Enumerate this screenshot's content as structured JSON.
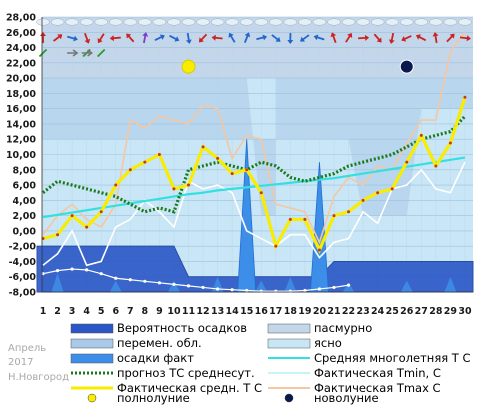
{
  "chart_data": {
    "type": "line",
    "side_labels": [
      "Апрель",
      "2017",
      "Н.Новгород"
    ],
    "x": [
      1,
      2,
      3,
      4,
      5,
      6,
      7,
      8,
      9,
      10,
      11,
      12,
      13,
      14,
      15,
      16,
      17,
      18,
      19,
      20,
      21,
      22,
      23,
      24,
      25,
      26,
      27,
      28,
      29,
      30
    ],
    "x_ticks": [
      "1",
      "2",
      "3",
      "4",
      "5",
      "6",
      "7",
      "8",
      "9",
      "10",
      "11",
      "12",
      "13",
      "14",
      "15",
      "16",
      "17",
      "18",
      "19",
      "20",
      "21",
      "22",
      "23",
      "24",
      "25",
      "26",
      "27",
      "28",
      "29",
      "30"
    ],
    "y_ticks": [
      "28,00",
      "26,00",
      "24,00",
      "22,00",
      "20,00",
      "18,00",
      "16,00",
      "14,00",
      "12,00",
      "10,00",
      "8,00",
      "6,00",
      "4,00",
      "2,00",
      "0,00",
      "-2,00",
      "-4,00",
      "-6,00",
      "-8,00"
    ],
    "ylim": [
      -8,
      28
    ],
    "grid": true,
    "legend_position": "bottom",
    "colors": {
      "precip_prob": "#2a56c6",
      "precip_prob_edge": "#1a3fa0",
      "precip_fact": "#3d8ee8",
      "clouds": "#a9c9e8",
      "overcast": "#c3d6ea",
      "clear": "#c7e6f6",
      "avg_longterm": "#33e0e0",
      "tmin": "#c8f4f4",
      "tmax": "#f5c6a0",
      "tmean": "#f8ec00",
      "forecast": "#1a7a1a",
      "full_moon": "#f8ec00",
      "new_moon": "#0a1850"
    },
    "series": [
      {
        "name": "Фактическая Tmax, C",
        "values": [
          -0.5,
          2.0,
          3.5,
          1.5,
          0.5,
          3.5,
          14.5,
          13.5,
          15.0,
          14.5,
          14.0,
          16.5,
          16.0,
          9.5,
          12.5,
          12.0,
          3.5,
          3.0,
          2.5,
          -1.5,
          4.5,
          7.0,
          6.0,
          8.5,
          8.0,
          11.5,
          14.5,
          14.5,
          23.5,
          26.0
        ]
      },
      {
        "name": "Фактическая Tmin, C",
        "values": [
          -4.5,
          -3.0,
          0.0,
          -4.5,
          -4.0,
          0.5,
          1.5,
          4.0,
          2.5,
          0.5,
          6.5,
          5.5,
          6.0,
          5.0,
          0.0,
          -1.0,
          -2.0,
          -0.5,
          -0.5,
          -3.5,
          -1.5,
          -1.0,
          2.5,
          1.0,
          5.5,
          6.0,
          8.0,
          5.5,
          5.0,
          9.0
        ]
      },
      {
        "name": "Фактическая средн. T C",
        "values": [
          -1.0,
          -0.5,
          2.0,
          0.5,
          2.5,
          6.0,
          8.0,
          9.0,
          10.0,
          5.5,
          6.0,
          11.0,
          9.5,
          7.5,
          8.0,
          5.0,
          -2.0,
          1.5,
          1.5,
          -2.5,
          2.0,
          2.5,
          4.0,
          5.0,
          5.5,
          9.0,
          12.5,
          8.5,
          11.5,
          17.5
        ]
      },
      {
        "name": "прогноз ТС среднесут.",
        "values": [
          5.0,
          6.5,
          6.0,
          5.5,
          5.0,
          4.5,
          3.5,
          2.5,
          3.0,
          2.5,
          8.0,
          8.5,
          9.0,
          8.5,
          8.0,
          9.0,
          8.5,
          7.0,
          6.5,
          7.0,
          7.5,
          8.5,
          9.0,
          9.5,
          10.0,
          11.0,
          12.0,
          12.5,
          13.0,
          15.0
        ]
      },
      {
        "name": "Средняя многолетняя Т С",
        "values": [
          1.8,
          2.1,
          2.4,
          2.7,
          3.0,
          3.3,
          3.6,
          3.9,
          4.2,
          4.5,
          4.8,
          5.0,
          5.3,
          5.5,
          5.7,
          5.9,
          6.1,
          6.3,
          6.5,
          6.7,
          6.9,
          7.2,
          7.5,
          7.8,
          8.1,
          8.4,
          8.7,
          9.0,
          9.3,
          9.6
        ]
      },
      {
        "name": "осадки факт",
        "values": [
          0,
          0,
          0,
          0,
          0,
          0,
          0,
          0,
          0,
          0,
          0,
          0,
          0,
          0,
          20,
          0,
          0,
          0,
          0,
          17,
          0,
          0,
          0,
          0,
          0,
          0,
          0,
          0,
          0,
          0
        ]
      },
      {
        "name": "Вероятность осадков",
        "values": [
          -2,
          -2,
          -2,
          -2,
          -2,
          -2,
          -2,
          -2,
          -2,
          -2,
          -6,
          -6,
          -6,
          -6,
          -6,
          -6,
          -6,
          -6,
          -6,
          -6,
          -4,
          -4,
          -4,
          -4,
          -4,
          -4,
          -4,
          -4,
          -4,
          -4
        ]
      }
    ],
    "moon_events": [
      {
        "name": "полнолуние",
        "day": 11
      },
      {
        "name": "новолуние",
        "day": 26
      }
    ],
    "legend": [
      {
        "label": "Вероятность осадков",
        "kind": "box",
        "color": "#2a56c6"
      },
      {
        "label": "пасмурно",
        "kind": "box",
        "color": "#c3d6ea"
      },
      {
        "label": "перемен. обл.",
        "kind": "box",
        "color": "#a9c9e8"
      },
      {
        "label": "ясно",
        "kind": "box",
        "color": "#c7e6f6"
      },
      {
        "label": "осадки факт",
        "kind": "box",
        "color": "#3d8ee8"
      },
      {
        "label": "Средняя многолетняя Т С",
        "kind": "line",
        "color": "#33e0e0"
      },
      {
        "label": "прогноз ТС среднесут.",
        "kind": "dotline",
        "color": "#1a7a1a"
      },
      {
        "label": "Фактическая Tmin, C",
        "kind": "line",
        "color": "#c8f4f4"
      },
      {
        "label": "Фактическая средн. T C",
        "kind": "yline",
        "color": "#f8ec00"
      },
      {
        "label": "Фактическая Tmax C",
        "kind": "line",
        "color": "#f5c6a0"
      },
      {
        "label": "полнолуние",
        "kind": "dot",
        "color": "#f8ec00"
      },
      {
        "label": "новолуние",
        "kind": "dot",
        "color": "#0a1850"
      }
    ]
  }
}
